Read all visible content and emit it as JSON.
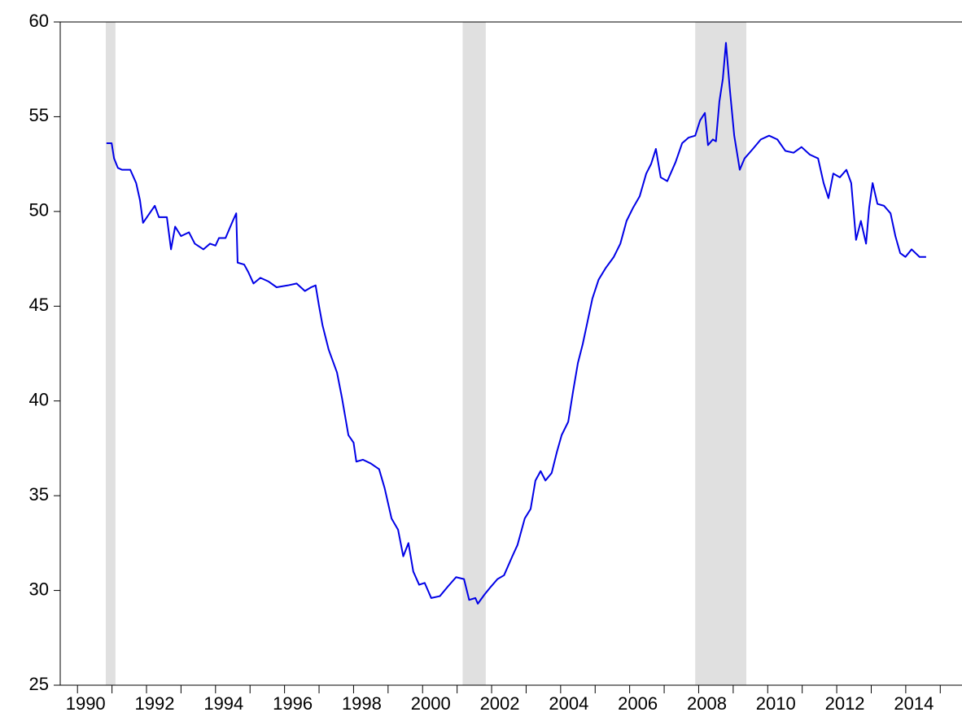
{
  "chart_data": {
    "type": "line",
    "x": [
      1990.84,
      1990.99,
      1991.06,
      1991.17,
      1991.29,
      1991.53,
      1991.7,
      1991.81,
      1991.9,
      1992.05,
      1992.24,
      1992.36,
      1992.59,
      1992.71,
      1992.83,
      1993.0,
      1993.23,
      1993.4,
      1993.65,
      1993.84,
      1994.0,
      1994.1,
      1994.29,
      1994.5,
      1994.6,
      1994.64,
      1994.83,
      1994.95,
      1995.1,
      1995.3,
      1995.54,
      1995.77,
      1996.1,
      1996.35,
      1996.59,
      1996.77,
      1996.9,
      1997.0,
      1997.1,
      1997.28,
      1997.52,
      1997.66,
      1997.85,
      1998.0,
      1998.08,
      1998.27,
      1998.5,
      1998.74,
      1998.9,
      1999.1,
      1999.29,
      1999.44,
      1999.59,
      1999.73,
      1999.9,
      2000.06,
      2000.25,
      2000.5,
      2000.73,
      2000.97,
      2001.2,
      2001.35,
      2001.53,
      2001.6,
      2001.8,
      2001.98,
      2002.17,
      2002.36,
      2002.6,
      2002.75,
      2002.96,
      2003.13,
      2003.27,
      2003.42,
      2003.56,
      2003.74,
      2003.89,
      2004.03,
      2004.22,
      2004.36,
      2004.5,
      2004.64,
      2004.78,
      2004.92,
      2005.1,
      2005.3,
      2005.54,
      2005.73,
      2005.91,
      2006.1,
      2006.29,
      2006.48,
      2006.62,
      2006.76,
      2006.9,
      2007.09,
      2007.33,
      2007.52,
      2007.71,
      2007.9,
      2008.04,
      2008.18,
      2008.27,
      2008.41,
      2008.5,
      2008.6,
      2008.7,
      2008.79,
      2008.9,
      2009.03,
      2009.12,
      2009.19,
      2009.33,
      2009.57,
      2009.8,
      2010.04,
      2010.28,
      2010.51,
      2010.75,
      2010.98,
      2011.22,
      2011.46,
      2011.62,
      2011.76,
      2011.9,
      2012.09,
      2012.28,
      2012.42,
      2012.56,
      2012.7,
      2012.85,
      2012.94,
      2013.04,
      2013.18,
      2013.37,
      2013.56,
      2013.7,
      2013.84,
      2013.99,
      2014.17,
      2014.4,
      2014.59
    ],
    "values": [
      53.6,
      53.6,
      52.8,
      52.3,
      52.2,
      52.2,
      51.5,
      50.6,
      49.4,
      49.8,
      50.3,
      49.7,
      49.7,
      48.0,
      49.2,
      48.7,
      48.9,
      48.3,
      48.0,
      48.3,
      48.2,
      48.6,
      48.6,
      49.5,
      49.9,
      47.3,
      47.2,
      46.8,
      46.2,
      46.5,
      46.3,
      46.0,
      46.1,
      46.2,
      45.8,
      46.0,
      46.1,
      45.0,
      44.0,
      42.7,
      41.5,
      40.2,
      38.2,
      37.8,
      36.8,
      36.9,
      36.7,
      36.4,
      35.4,
      33.8,
      33.2,
      31.8,
      32.5,
      31.0,
      30.3,
      30.4,
      29.6,
      29.7,
      30.2,
      30.7,
      30.6,
      29.5,
      29.6,
      29.3,
      29.8,
      30.2,
      30.6,
      30.8,
      31.8,
      32.4,
      33.8,
      34.3,
      35.8,
      36.3,
      35.8,
      36.2,
      37.3,
      38.2,
      38.9,
      40.5,
      42.0,
      43.0,
      44.2,
      45.4,
      46.4,
      47.0,
      47.6,
      48.3,
      49.5,
      50.2,
      50.8,
      52.0,
      52.5,
      53.3,
      51.8,
      51.6,
      52.6,
      53.6,
      53.9,
      54.0,
      54.8,
      55.2,
      53.5,
      53.8,
      53.7,
      55.8,
      57.0,
      58.9,
      56.5,
      54.0,
      53.0,
      52.2,
      52.8,
      53.3,
      53.8,
      54.0,
      53.8,
      53.2,
      53.1,
      53.4,
      53.0,
      52.8,
      51.5,
      50.7,
      52.0,
      51.8,
      52.2,
      51.5,
      48.5,
      49.5,
      48.3,
      50.2,
      51.5,
      50.4,
      50.3,
      49.9,
      48.7,
      47.8,
      47.6,
      48.0,
      47.6,
      47.6
    ],
    "color": "#0000e6",
    "shaded_regions": [
      [
        1990.82,
        1991.1
      ],
      [
        2001.16,
        2001.83
      ],
      [
        2007.9,
        2009.38
      ]
    ],
    "shade_color": "#e0e0e0",
    "xlim": [
      1989.5,
      2015.63
    ],
    "xticks": [
      1990,
      1992,
      1994,
      1996,
      1998,
      2000,
      2002,
      2004,
      2006,
      2008,
      2010,
      2012,
      2014
    ],
    "xminorticks": [
      1991,
      1993,
      1995,
      1997,
      1999,
      2001,
      2003,
      2005,
      2007,
      2009,
      2011,
      2013,
      2015
    ],
    "ylim": [
      25,
      60
    ],
    "yticks": [
      25,
      30,
      35,
      40,
      45,
      50,
      55,
      60
    ]
  }
}
